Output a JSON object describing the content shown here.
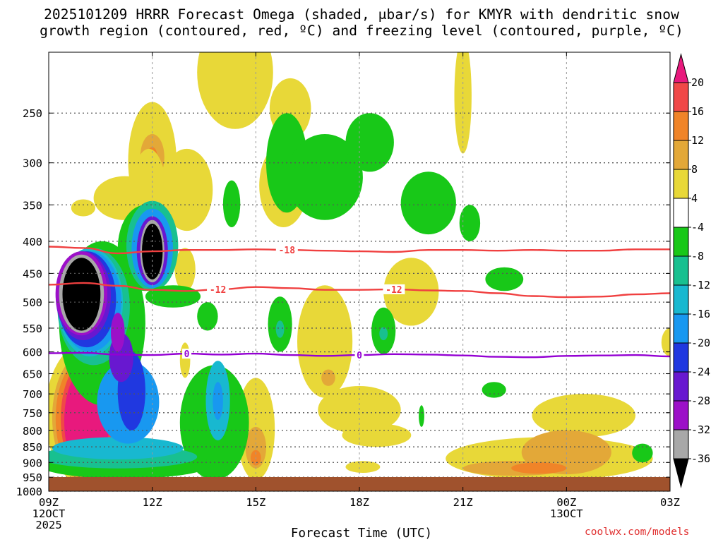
{
  "title": "2025101209 HRRR Forecast Omega (shaded, μbar/s) for KMYR with dendritic snow\ngrowth region (contoured, red, ºC) and freezing level (contoured, purple, ºC)",
  "credit": "coolwx.com/models",
  "colors": {
    "temp_line": "#f04040",
    "freezing_line": "#9400d3",
    "ground": "#a0522d"
  },
  "chart_data": {
    "type": "heatmap",
    "title": "2025101209 HRRR Forecast Omega (shaded, μbar/s) for KMYR with dendritic snow growth region (contoured, red, ºC) and freezing level (contoured, purple, ºC)",
    "xlabel": "Forecast Time (UTC)",
    "ylabel": "",
    "x_range_hours": [
      0,
      18
    ],
    "y_range_hpa": [
      200,
      1000
    ],
    "y_ticks": [
      250,
      300,
      350,
      400,
      450,
      500,
      550,
      600,
      650,
      700,
      750,
      800,
      850,
      900,
      950,
      1000
    ],
    "x_ticks": [
      {
        "hour": 0,
        "labels": [
          "09Z",
          "12OCT",
          "2025"
        ]
      },
      {
        "hour": 3,
        "labels": [
          "12Z"
        ]
      },
      {
        "hour": 6,
        "labels": [
          "15Z"
        ]
      },
      {
        "hour": 9,
        "labels": [
          "18Z"
        ]
      },
      {
        "hour": 12,
        "labels": [
          "21Z"
        ]
      },
      {
        "hour": 15,
        "labels": [
          "00Z",
          "13OCT"
        ]
      },
      {
        "hour": 18,
        "labels": [
          "03Z"
        ]
      }
    ],
    "colorbar": {
      "tick_labels": [
        20,
        16,
        12,
        8,
        4,
        -4,
        -8,
        -12,
        -16,
        -20,
        -24,
        -28,
        -32,
        -36
      ],
      "bins": [
        {
          "range": ">20",
          "color": "#e8197d"
        },
        {
          "range": "16 to 20",
          "color": "#f04848"
        },
        {
          "range": "12 to 16",
          "color": "#f08428"
        },
        {
          "range": "8 to 12",
          "color": "#e3a838"
        },
        {
          "range": "4 to 8",
          "color": "#e8d838"
        },
        {
          "range": "-4 to 4",
          "color": "#ffffff"
        },
        {
          "range": "-8 to -4",
          "color": "#18c818"
        },
        {
          "range": "-12 to -8",
          "color": "#18c090"
        },
        {
          "range": "-16 to -12",
          "color": "#18b8d0"
        },
        {
          "range": "-20 to -16",
          "color": "#1898f0"
        },
        {
          "range": "-24 to -20",
          "color": "#2038e0"
        },
        {
          "range": "-28 to -24",
          "color": "#6818d0"
        },
        {
          "range": "-32 to -28",
          "color": "#9c10c8"
        },
        {
          "range": "-36 to -32",
          "color": "#a8a8a8"
        },
        {
          "range": "<-36",
          "color": "#000000"
        }
      ]
    },
    "contours": [
      {
        "name": "-18 °C",
        "label": "-18",
        "label_hour": 6.9,
        "pressure_hpa": [
          408,
          410,
          418,
          415,
          413,
          413,
          412,
          413,
          414,
          415,
          416,
          413,
          413,
          414,
          413,
          414,
          414,
          412,
          412
        ]
      },
      {
        "name": "-12 °C",
        "label": "-12",
        "label_hour": 4.9,
        "label2": "-12",
        "label2_hour": 10.0,
        "pressure_hpa": [
          469,
          466,
          471,
          478,
          480,
          477,
          473,
          475,
          478,
          478,
          477,
          479,
          480,
          484,
          489,
          491,
          490,
          486,
          484
        ]
      },
      {
        "name": "0 °C (freezing level)",
        "label": "0",
        "label_hour": 4.0,
        "label2": "0",
        "label2_hour": 9.0,
        "pressure_hpa": [
          603,
          602,
          606,
          607,
          604,
          606,
          604,
          607,
          609,
          607,
          605,
          606,
          608,
          611,
          612,
          609,
          608,
          607,
          610
        ]
      }
    ],
    "omega_features": [
      {
        "label": "ascent core",
        "hour_range": [
          0.4,
          1.8
        ],
        "pressure_range_hpa": [
          410,
          565
        ],
        "min_value": "<-36"
      },
      {
        "label": "ascent core",
        "hour_range": [
          2.7,
          3.3
        ],
        "pressure_range_hpa": [
          375,
          460
        ],
        "min_value": "<-36"
      },
      {
        "label": "descent core",
        "hour_range": [
          0.5,
          1.8
        ],
        "pressure_range_hpa": [
          610,
          955
        ],
        "max_value": ">20"
      },
      {
        "label": "descent region",
        "hour_range": [
          11.5,
          16.5
        ],
        "pressure_range_hpa": [
          840,
          960
        ],
        "max_value": "12 to 16"
      }
    ]
  }
}
